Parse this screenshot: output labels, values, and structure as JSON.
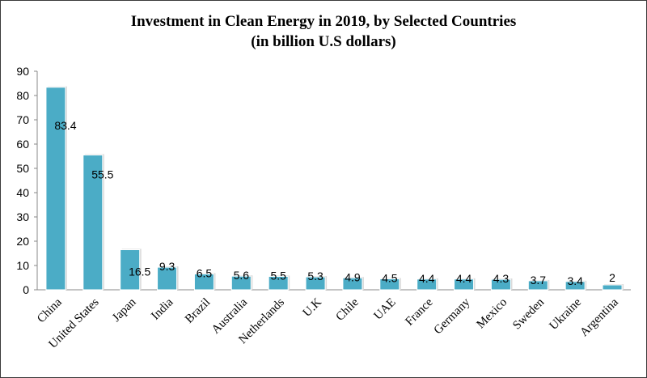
{
  "chart_data": {
    "type": "bar",
    "title": "Investment in Clean Energy in 2019, by Selected Countries",
    "subtitle": "(in billion U.S dollars)",
    "categories": [
      "China",
      "United States",
      "Japan",
      "India",
      "Brazil",
      "Australia",
      "Netherlands",
      "U.K",
      "Chile",
      "UAE",
      "France",
      "Germany",
      "Mexico",
      "Sweden",
      "Ukraine",
      "Argentina"
    ],
    "values": [
      83.4,
      55.5,
      16.5,
      9.3,
      6.5,
      5.6,
      5.5,
      5.3,
      4.9,
      4.5,
      4.4,
      4.4,
      4.3,
      3.7,
      3.4,
      2
    ],
    "data_labels": [
      "83.4",
      "55.5",
      "16.5",
      "9.3",
      "6.5",
      "5.6",
      "5.5",
      "5.3",
      "4.9",
      "4.5",
      "4.4",
      "4.4",
      "4.3",
      "3.7",
      "3.4",
      "2"
    ],
    "yticks": [
      "0",
      "10",
      "20",
      "30",
      "40",
      "50",
      "60",
      "70",
      "80",
      "90"
    ],
    "ylim": [
      0,
      90
    ],
    "grid": false,
    "legend": "none",
    "bar_color": "#4bacc6"
  }
}
